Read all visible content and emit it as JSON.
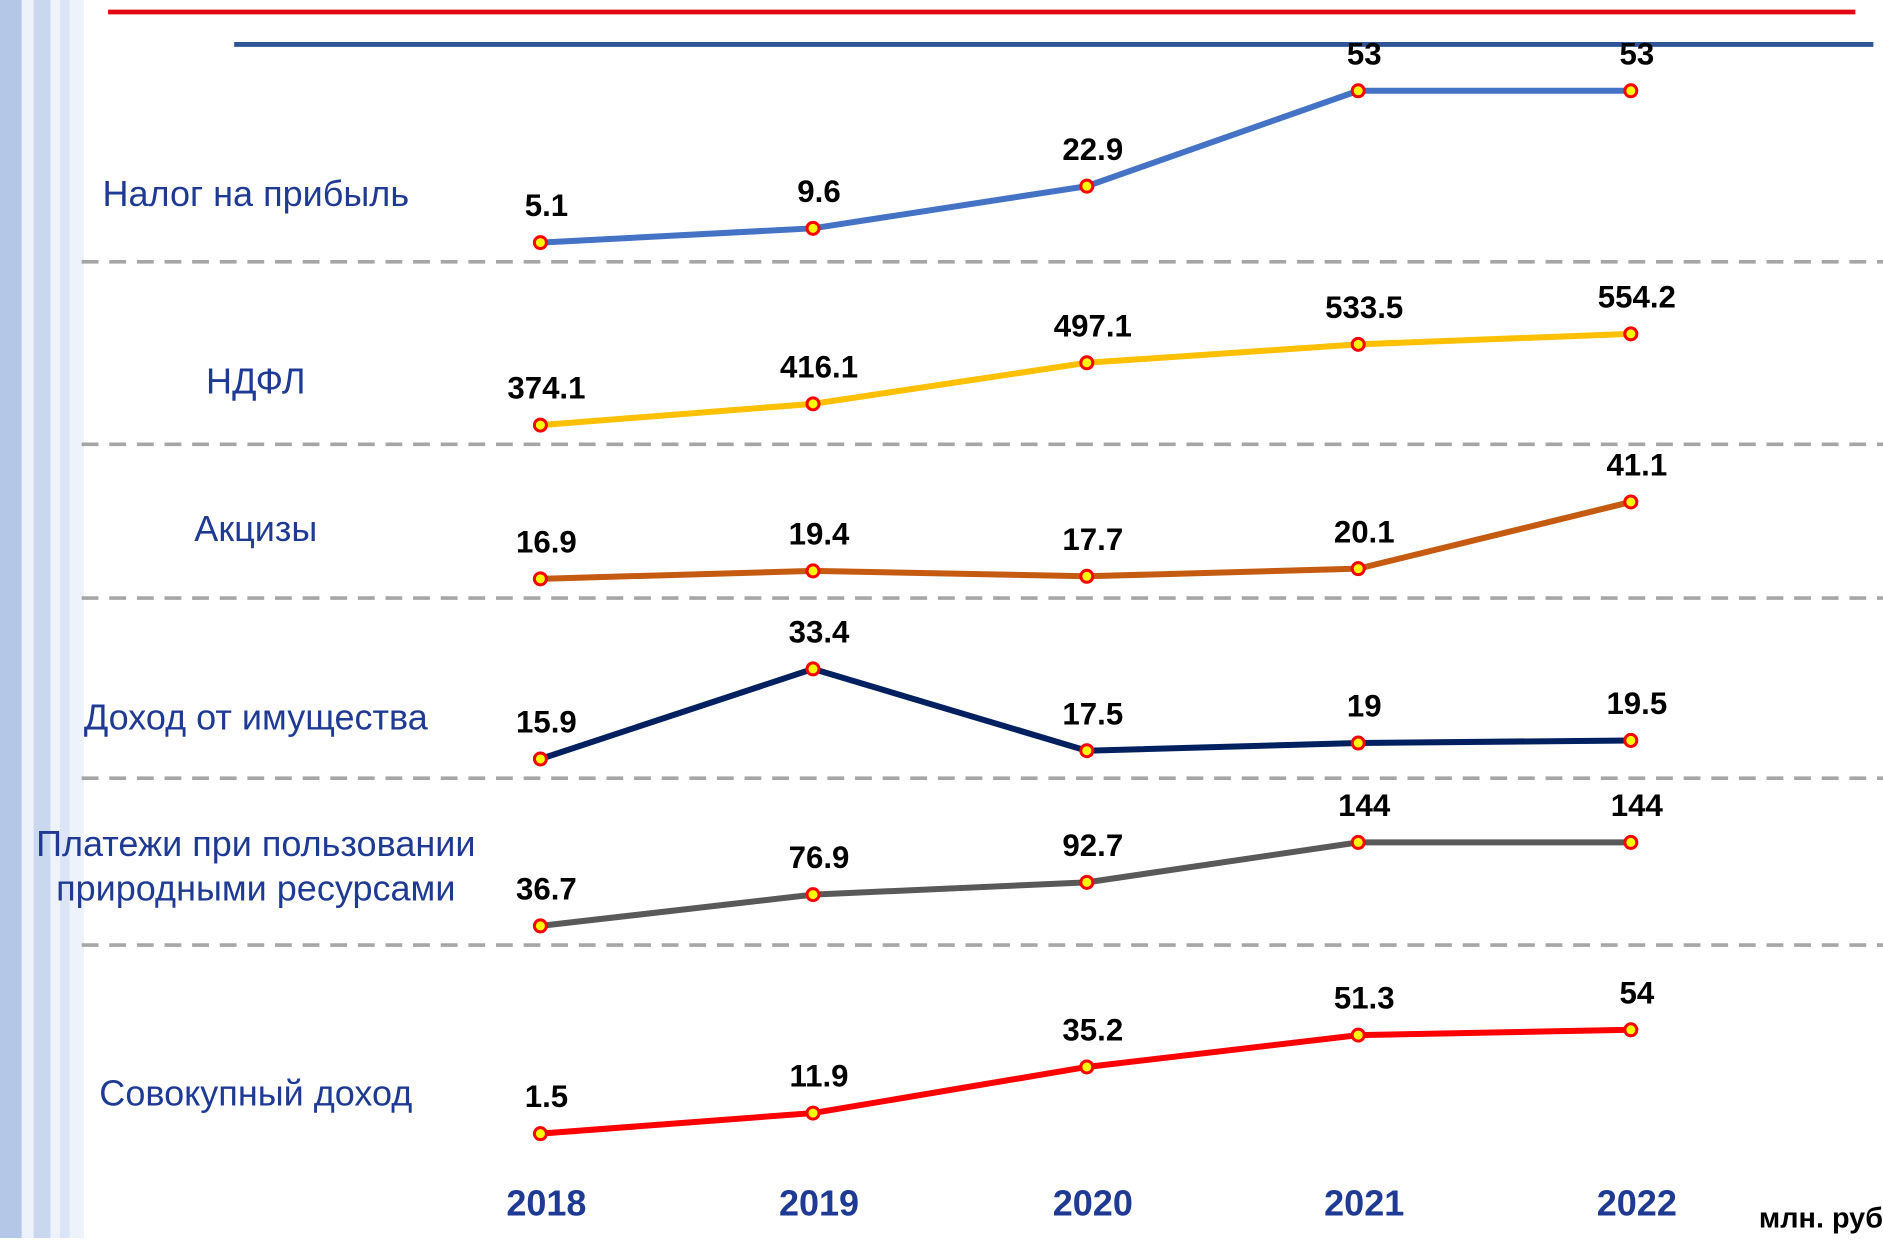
{
  "chart_data": {
    "type": "line",
    "categories": [
      "2018",
      "2019",
      "2020",
      "2021",
      "2022"
    ],
    "unit_label": "млн. руб",
    "series": [
      {
        "name": "Налог на прибыль",
        "color": "#4472c4",
        "values": [
          5.1,
          9.6,
          22.9,
          53,
          53
        ]
      },
      {
        "name": "НДФЛ",
        "color": "#ffc000",
        "values": [
          374.1,
          416.1,
          497.1,
          533.5,
          554.2
        ]
      },
      {
        "name": "Акцизы",
        "color": "#c55a11",
        "values": [
          16.9,
          19.4,
          17.7,
          20.1,
          41.1
        ]
      },
      {
        "name": "Доход от имущества",
        "color": "#002060",
        "values": [
          15.9,
          33.4,
          17.5,
          19,
          19.5
        ]
      },
      {
        "name": "Платежи при пользовании природными ресурсами",
        "color": "#595959",
        "values": [
          36.7,
          76.9,
          92.7,
          144,
          144
        ]
      },
      {
        "name": "Совокупный доход",
        "color": "#ff0000",
        "values": [
          1.5,
          11.9,
          35.2,
          51.3,
          54
        ]
      }
    ]
  }
}
